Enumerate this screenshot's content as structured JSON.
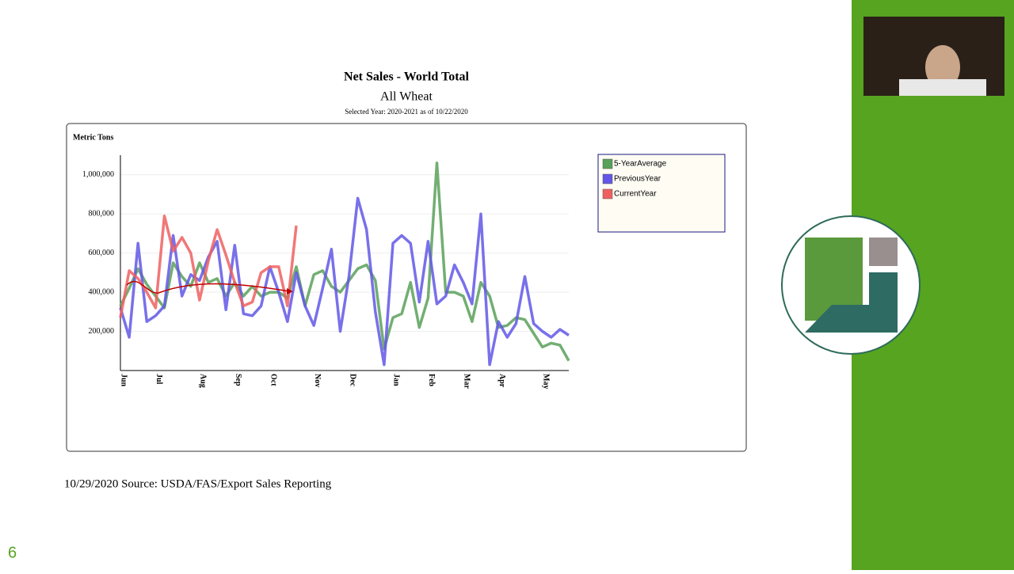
{
  "chart_data": {
    "type": "line",
    "title": "Net Sales - World Total",
    "subtitle": "All Wheat",
    "note": "Selected Year: 2020-2021 as of 10/22/2020",
    "y_label": "Metric Tons",
    "categories": [
      "Jun",
      null,
      null,
      null,
      "Jul",
      null,
      null,
      null,
      null,
      "Aug",
      null,
      null,
      null,
      "Sep",
      null,
      null,
      null,
      "Oct",
      null,
      null,
      null,
      null,
      "Nov",
      null,
      null,
      null,
      "Dec",
      null,
      null,
      null,
      null,
      "Jan",
      null,
      null,
      null,
      "Feb",
      null,
      null,
      null,
      "Mar",
      null,
      null,
      null,
      "Apr",
      null,
      null,
      null,
      null,
      "May",
      null,
      null,
      null
    ],
    "series": [
      {
        "name": "5-YearAverage",
        "color": "#5aa05a",
        "values": [
          330000,
          420000,
          520000,
          440000,
          380000,
          320000,
          550000,
          480000,
          430000,
          550000,
          450000,
          470000,
          380000,
          450000,
          380000,
          430000,
          380000,
          400000,
          400000,
          370000,
          530000,
          330000,
          490000,
          510000,
          430000,
          400000,
          460000,
          520000,
          540000,
          460000,
          110000,
          270000,
          290000,
          450000,
          220000,
          370000,
          1060000,
          400000,
          400000,
          380000,
          250000,
          450000,
          380000,
          220000,
          230000,
          270000,
          260000,
          190000,
          120000,
          140000,
          130000,
          50000
        ]
      },
      {
        "name": "PreviousYear",
        "color": "#6257e6",
        "values": [
          320000,
          170000,
          650000,
          250000,
          280000,
          330000,
          690000,
          380000,
          490000,
          460000,
          580000,
          660000,
          310000,
          640000,
          290000,
          280000,
          330000,
          530000,
          400000,
          250000,
          500000,
          330000,
          230000,
          420000,
          620000,
          200000,
          480000,
          880000,
          720000,
          300000,
          30000,
          650000,
          690000,
          650000,
          350000,
          660000,
          340000,
          380000,
          540000,
          450000,
          340000,
          800000,
          30000,
          250000,
          170000,
          240000,
          480000,
          240000,
          200000,
          170000,
          210000,
          180000
        ]
      },
      {
        "name": "CurrentYear",
        "color": "#ee6060",
        "values": [
          270000,
          510000,
          470000,
          400000,
          320000,
          790000,
          610000,
          680000,
          600000,
          360000,
          560000,
          720000,
          590000,
          450000,
          330000,
          350000,
          500000,
          530000,
          530000,
          330000,
          740000,
          null,
          null,
          null,
          null,
          null,
          null,
          null,
          null,
          null,
          null,
          null,
          null,
          null,
          null,
          null,
          null,
          null,
          null,
          null,
          null,
          null,
          null,
          null,
          null,
          null,
          null,
          null,
          null,
          null,
          null,
          null
        ]
      }
    ],
    "ylim": [
      0,
      1100000
    ],
    "yticks": [
      {
        "value": 200000,
        "label": "200,000"
      },
      {
        "value": 400000,
        "label": "400,000"
      },
      {
        "value": 600000,
        "label": "600,000"
      },
      {
        "value": 800000,
        "label": "800,000"
      },
      {
        "value": 1000000,
        "label": "1,000,000"
      }
    ],
    "grid": true
  },
  "footer": "10/29/2020 Source: USDA/FAS/Export Sales Reporting",
  "slide_number": "6"
}
